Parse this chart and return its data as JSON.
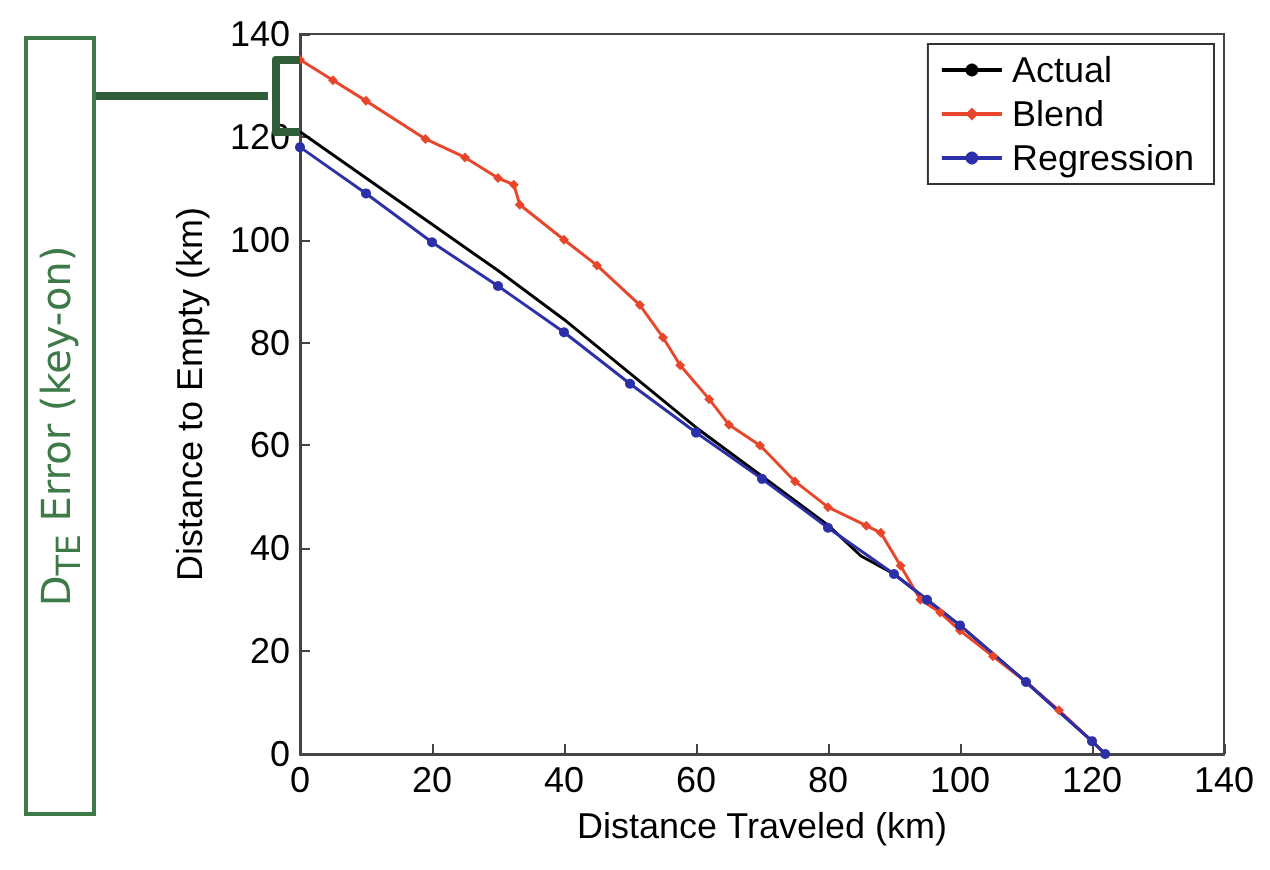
{
  "chart_data": {
    "type": "line",
    "xlabel": "Distance Traveled (km)",
    "ylabel": "Distance to Empty (km)",
    "annotations": [
      "D$_{TE}$ Error (key-on)"
    ],
    "xlim": [
      0,
      140
    ],
    "ylim": [
      0,
      140
    ],
    "xticks": [
      0,
      20,
      40,
      60,
      80,
      100,
      120,
      140
    ],
    "yticks": [
      0,
      20,
      40,
      60,
      80,
      100,
      120,
      140
    ],
    "grid": false,
    "legend": "top right",
    "line_style": "solid",
    "series": [
      {
        "name": "Actual",
        "color": "#000000",
        "marker": "none",
        "x": [
          0,
          10,
          20,
          30,
          40,
          50,
          60,
          70,
          80,
          85,
          90,
          100,
          110,
          120,
          122
        ],
        "values": [
          121,
          112,
          103,
          94,
          84.5,
          74,
          63.5,
          54,
          44.5,
          38.5,
          35,
          25,
          14,
          2.5,
          0
        ]
      },
      {
        "name": "Blend",
        "color": "#e8462a",
        "marker": "diamond",
        "x": [
          0,
          5,
          10,
          19,
          25,
          30,
          32.4,
          33.3,
          40,
          45,
          51.5,
          55,
          57.6,
          62,
          65,
          69.7,
          75,
          80,
          85.8,
          88,
          91,
          94,
          97,
          100,
          105,
          110,
          115,
          120,
          122
        ],
        "values": [
          135,
          131,
          127,
          119.6,
          116,
          112,
          110.7,
          106.8,
          100,
          95,
          87.3,
          81,
          75.6,
          69,
          64,
          60,
          53,
          48,
          44.4,
          43,
          36.6,
          30,
          27.5,
          24,
          19,
          14,
          8.5,
          2.5,
          0
        ]
      },
      {
        "name": "Regression",
        "color": "#2b2fa8",
        "marker": "circle",
        "x": [
          0,
          10,
          20,
          30,
          40,
          50,
          60,
          70,
          80,
          90,
          95,
          100,
          110,
          120,
          122
        ],
        "values": [
          118,
          109,
          99.5,
          91,
          82,
          72,
          62.5,
          53.5,
          44,
          35,
          30,
          25,
          14,
          2.5,
          0
        ]
      }
    ]
  }
}
